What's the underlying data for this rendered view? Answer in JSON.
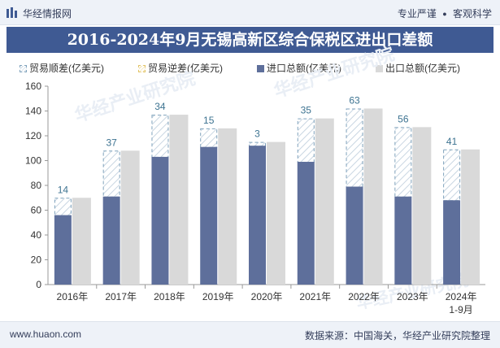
{
  "header": {
    "brand": "华经情报网",
    "tagline_left": "专业严谨",
    "tagline_right": "客观科学"
  },
  "title": "2016-2024年9月无锡高新区综合保税区进出口差额",
  "legend": [
    {
      "key": "surplus",
      "label": "贸易顺差(亿美元)"
    },
    {
      "key": "deficit",
      "label": "贸易逆差(亿美元)"
    },
    {
      "key": "import",
      "label": "进口总额(亿美元)"
    },
    {
      "key": "export",
      "label": "出口总额(亿美元)"
    }
  ],
  "colors": {
    "import": "#5e6f9b",
    "export": "#d9d9d9",
    "surplus_border": "#7fa2bc",
    "label": "#3d7391"
  },
  "chart_data": {
    "type": "bar",
    "title": "2016-2024年9月无锡高新区综合保税区进出口差额",
    "categories": [
      "2016年",
      "2017年",
      "2018年",
      "2019年",
      "2020年",
      "2021年",
      "2022年",
      "2023年",
      "2024年\n1-9月"
    ],
    "series": [
      {
        "name": "进口总额(亿美元)",
        "values": [
          56,
          71,
          103,
          111,
          112,
          99,
          79,
          71,
          68
        ]
      },
      {
        "name": "出口总额(亿美元)",
        "values": [
          70,
          108,
          137,
          126,
          115,
          134,
          142,
          127,
          109
        ]
      },
      {
        "name": "贸易顺差(亿美元)",
        "values": [
          14,
          37,
          34,
          15,
          3,
          35,
          63,
          56,
          41
        ]
      }
    ],
    "ylim": [
      0,
      160
    ],
    "yticks": [
      0,
      20,
      40,
      60,
      80,
      100,
      120,
      140,
      160
    ],
    "xlabel": "",
    "ylabel": ""
  },
  "watermark": "华经产业研究院",
  "footer": {
    "site": "www.huaon.com",
    "source": "数据来源：中国海关，华经产业研究院整理"
  }
}
